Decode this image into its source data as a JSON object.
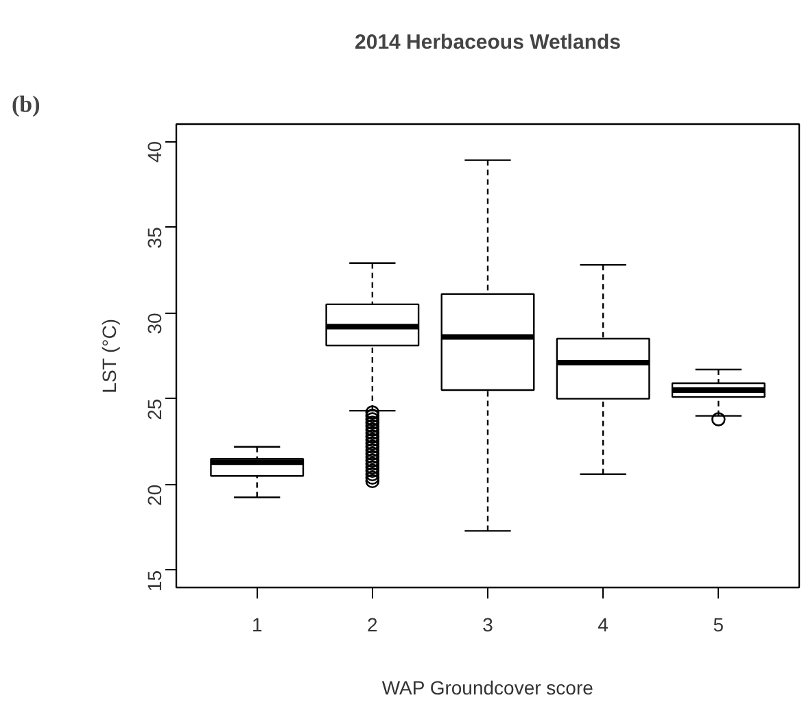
{
  "chart_data": {
    "type": "box",
    "title": "2014 Herbaceous Wetlands",
    "xlabel": "WAP Groundcover score",
    "ylabel": "LST (°C)",
    "annotations": [
      "(b)"
    ],
    "categories": [
      "1",
      "2",
      "3",
      "4",
      "5"
    ],
    "boxes": [
      {
        "low": 19.25,
        "q1": 20.5,
        "median": 21.3,
        "q3": 21.5,
        "high": 22.2
      },
      {
        "low": 24.3,
        "q1": 28.1,
        "median": 29.2,
        "q3": 30.5,
        "high": 32.9,
        "outliers": [
          20.2,
          20.4,
          20.6,
          20.8,
          21.0,
          21.2,
          21.4,
          21.6,
          21.8,
          22.0,
          22.2,
          22.4,
          22.6,
          22.8,
          23.0,
          23.2,
          23.4,
          23.6,
          23.8,
          24.0,
          24.2
        ]
      },
      {
        "low": 17.3,
        "q1": 25.5,
        "median": 28.6,
        "q3": 31.1,
        "high": 38.9
      },
      {
        "low": 20.6,
        "q1": 25.0,
        "median": 27.1,
        "q3": 28.5,
        "high": 32.8
      },
      {
        "low": 24.0,
        "q1": 25.1,
        "median": 25.5,
        "q3": 25.9,
        "high": 26.7,
        "outliers": [
          23.8
        ]
      }
    ],
    "ylim": [
      14,
      41
    ],
    "yticks": [
      15,
      20,
      25,
      30,
      35,
      40
    ],
    "grid": false
  }
}
